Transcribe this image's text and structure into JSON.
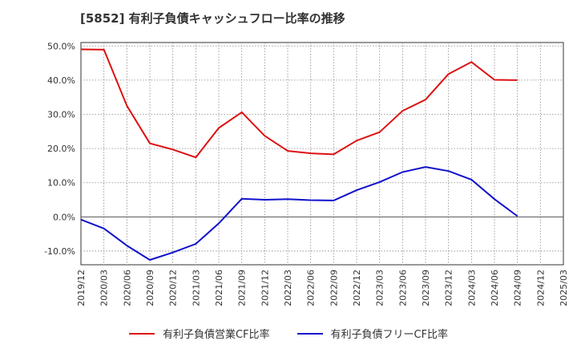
{
  "title": "[5852]  有利子負債キャッシュフロー比率の推移",
  "chart_data": {
    "type": "line",
    "x": [
      "2019/12",
      "2020/03",
      "2020/06",
      "2020/09",
      "2020/12",
      "2021/03",
      "2021/06",
      "2021/09",
      "2021/12",
      "2022/03",
      "2022/06",
      "2022/09",
      "2022/12",
      "2023/03",
      "2023/06",
      "2023/09",
      "2023/12",
      "2024/03",
      "2024/06",
      "2024/09",
      "2024/12",
      "2025/03"
    ],
    "ylim": [
      -14,
      51
    ],
    "yticks": [
      -10,
      0,
      10,
      20,
      30,
      40,
      50
    ],
    "ytick_labels": [
      "-10.0%",
      "0.0%",
      "10.0%",
      "20.0%",
      "30.0%",
      "40.0%",
      "50.0%"
    ],
    "grid": true,
    "legend_position": "bottom",
    "series": [
      {
        "name": "有利子負債営業CF比率",
        "color": "#dd1111",
        "values": [
          49.0,
          48.9,
          32.5,
          21.5,
          19.7,
          17.4,
          26.0,
          30.6,
          23.7,
          19.3,
          18.6,
          18.3,
          22.3,
          24.8,
          31.0,
          34.3,
          41.8,
          45.3,
          40.1,
          40.0,
          null,
          null
        ]
      },
      {
        "name": "有利子負債フリーCF比率",
        "color": "#1111cc",
        "values": [
          -0.8,
          -3.4,
          -8.4,
          -12.6,
          -10.4,
          -7.9,
          -1.9,
          5.3,
          5.0,
          5.2,
          4.9,
          4.8,
          7.8,
          10.2,
          13.1,
          14.6,
          13.4,
          10.9,
          5.2,
          0.2,
          null,
          null
        ]
      }
    ]
  }
}
